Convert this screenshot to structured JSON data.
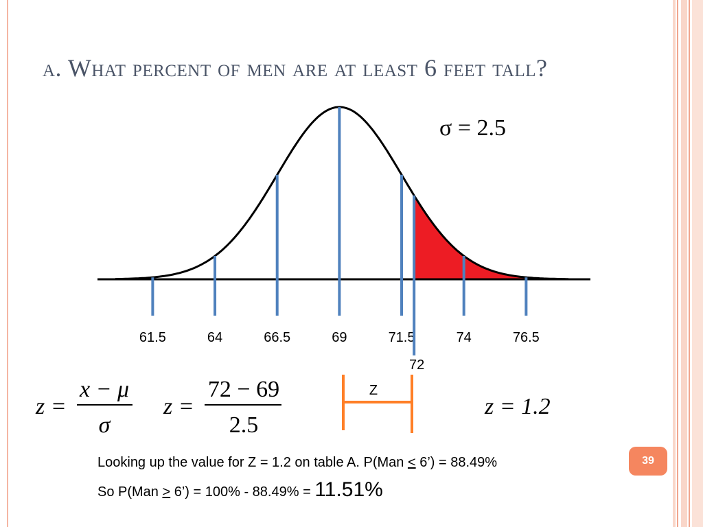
{
  "title": "a. What percent of men are at least 6 feet tall?",
  "sigma_label": "σ = 2.5",
  "chart_data": {
    "type": "area",
    "distribution": "normal",
    "mean": 69,
    "sd": 2.5,
    "xlim": [
      60,
      78.2
    ],
    "ticks": [
      {
        "value": 61.5,
        "label": "61.5"
      },
      {
        "value": 64,
        "label": "64"
      },
      {
        "value": 66.5,
        "label": "66.5"
      },
      {
        "value": 69,
        "label": "69"
      },
      {
        "value": 71.5,
        "label": "71.5"
      },
      {
        "value": 74,
        "label": "74"
      },
      {
        "value": 76.5,
        "label": "76.5"
      }
    ],
    "highlight": {
      "value": 72,
      "label": "72"
    },
    "shaded_from": 72,
    "shade_color": "#ed1c24",
    "line_color": "#4f81bd"
  },
  "formulas": {
    "general": {
      "lhs": "z =",
      "numerator": "x − μ",
      "denominator": "σ"
    },
    "substituted": {
      "lhs": "z =",
      "numerator": "72 − 69",
      "denominator": "2.5"
    },
    "result": "z = 1.2"
  },
  "bracket": {
    "label": "Z",
    "color": "#ff7f27"
  },
  "footnote": {
    "line1_pre": "Looking up the value for Z = 1.2 on table A.  P(Man ",
    "line1_op": "<",
    "line1_post": " 6’) = 88.49%",
    "line2_pre": "So P(Man ",
    "line2_op": ">",
    "line2_mid": " 6’) = 100% - 88.49% = ",
    "line2_result": "11.51%"
  },
  "page_number": "39"
}
